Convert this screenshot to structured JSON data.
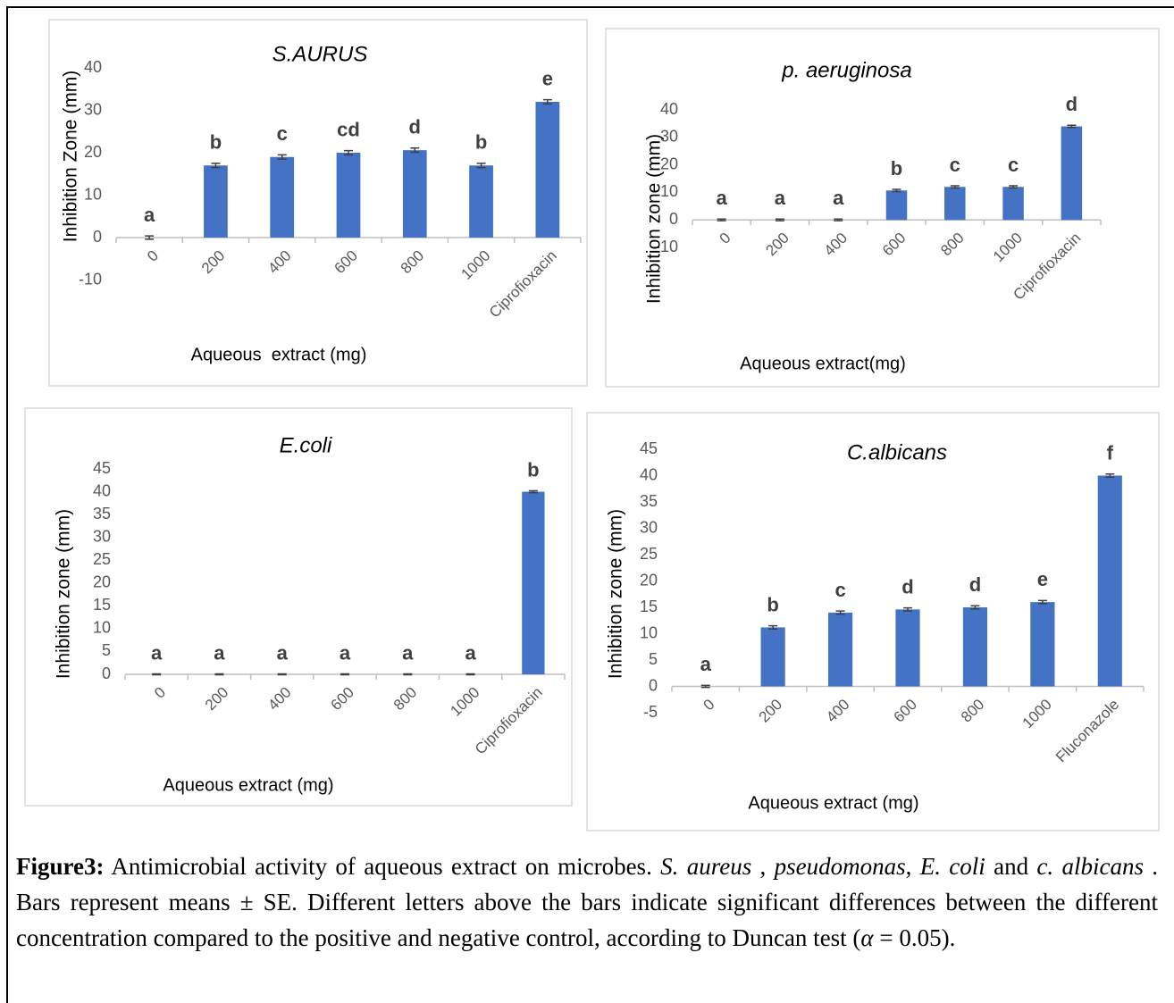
{
  "chart_data": [
    {
      "type": "bar",
      "title": "S.AURUS",
      "x_label": "Aqueous  extract (mg)",
      "y_label": "Inhibition Zone (mm)",
      "categories": [
        "0",
        "200",
        "400",
        "600",
        "800",
        "1000",
        "Ciprofioxacin"
      ],
      "values": [
        0,
        17,
        19,
        20,
        20.6,
        17,
        32
      ],
      "errors": [
        0.4,
        0.5,
        0.5,
        0.5,
        0.5,
        0.5,
        0.5
      ],
      "annotations": [
        "a",
        "b",
        "c",
        "cd",
        "d",
        "b",
        "e"
      ],
      "color": "#4472c4",
      "ylim": [
        -10,
        40
      ],
      "yticks": [
        -10,
        0,
        10,
        20,
        30,
        40
      ]
    },
    {
      "type": "bar",
      "title": "p.  aeruginosa",
      "x_label": "Aqueous extract(mg)",
      "y_label": "Inhibition zone (mm)",
      "categories": [
        "0",
        "200",
        "400",
        "600",
        "800",
        "1000",
        "Ciprofioxacin"
      ],
      "values": [
        0,
        0,
        0,
        10.7,
        12,
        12,
        34
      ],
      "errors": [
        0.3,
        0.3,
        0.3,
        0.4,
        0.4,
        0.4,
        0.4
      ],
      "annotations": [
        "a",
        "a",
        "a",
        "b",
        "c",
        "c",
        "d"
      ],
      "color": "#4472c4",
      "ylim": [
        -10,
        40
      ],
      "yticks": [
        -10,
        0,
        10,
        20,
        30,
        40
      ]
    },
    {
      "type": "bar",
      "title": "E.coli",
      "x_label": "Aqueous extract (mg)",
      "y_label": "Inhibition zone (mm)",
      "categories": [
        "0",
        "200",
        "400",
        "600",
        "800",
        "1000",
        "Ciprofioxacin"
      ],
      "values": [
        0,
        0,
        0,
        0,
        0,
        0,
        40
      ],
      "errors": [
        0.1,
        0.1,
        0.1,
        0.1,
        0.1,
        0.1,
        0.2
      ],
      "annotations": [
        "a",
        "a",
        "a",
        "a",
        "a",
        "a",
        "b"
      ],
      "color": "#4472c4",
      "ylim": [
        0,
        45
      ],
      "yticks": [
        0,
        5,
        10,
        15,
        20,
        25,
        30,
        35,
        40,
        45
      ]
    },
    {
      "type": "bar",
      "title": "C.albicans",
      "x_label": "Aqueous extract (mg)",
      "y_label": "Inhibition zone (mm)",
      "categories": [
        "0",
        "200",
        "400",
        "600",
        "800",
        "1000",
        "Fluconazole"
      ],
      "values": [
        0,
        11.2,
        14,
        14.6,
        15,
        16,
        40
      ],
      "errors": [
        0.2,
        0.3,
        0.3,
        0.3,
        0.3,
        0.3,
        0.3
      ],
      "annotations": [
        "a",
        "b",
        "c",
        "d",
        "d",
        "e",
        "f"
      ],
      "color": "#4472c4",
      "ylim": [
        -5,
        45
      ],
      "yticks": [
        -5,
        0,
        5,
        10,
        15,
        20,
        25,
        30,
        35,
        40,
        45
      ]
    }
  ],
  "caption": [
    "Figure3:",
    " Antimicrobial activity of aqueous extract on microbes. ",
    "S. aureus",
    " , ",
    "pseudomonas",
    ", ",
    "E. coli",
    " and ",
    "c. albicans",
    " . Bars represent means ± SE. Different letters above the bars indicate significant differences between the different concentration compared to the positive and negative control, according to Duncan test (",
    "α",
    " = 0.05)."
  ]
}
